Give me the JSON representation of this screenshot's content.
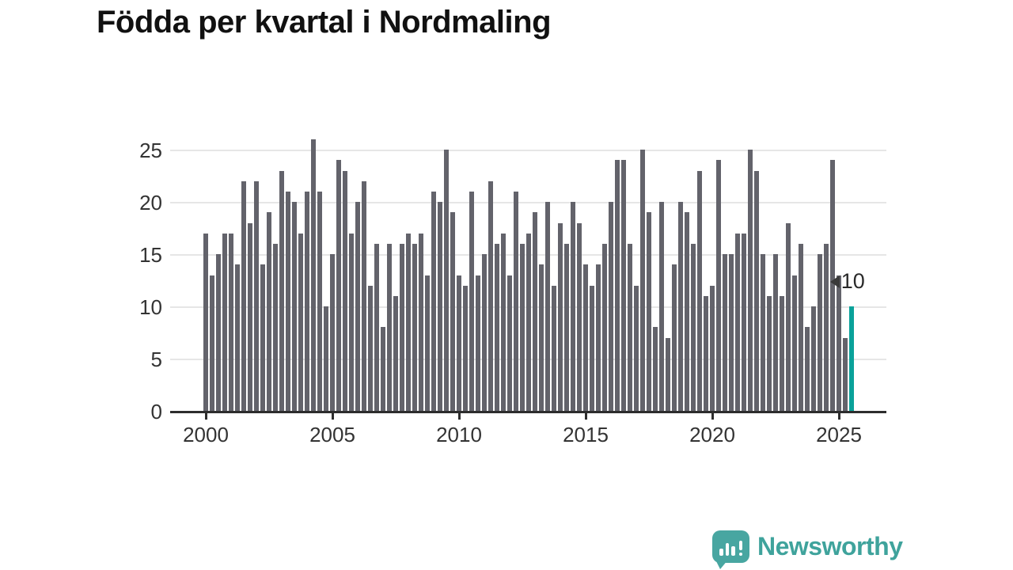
{
  "title": "Födda per kvartal i Nordmaling",
  "chart_data": {
    "type": "bar",
    "x_start": {
      "year": 2000,
      "quarter": 1
    },
    "x_end": {
      "year": 2025,
      "quarter": 3
    },
    "values": [
      17,
      13,
      15,
      17,
      17,
      14,
      22,
      18,
      22,
      14,
      19,
      16,
      23,
      21,
      20,
      17,
      21,
      26,
      21,
      10,
      15,
      24,
      23,
      17,
      20,
      22,
      12,
      16,
      8,
      16,
      11,
      16,
      17,
      16,
      17,
      13,
      21,
      20,
      25,
      19,
      13,
      12,
      21,
      13,
      15,
      22,
      16,
      17,
      13,
      21,
      16,
      17,
      19,
      14,
      20,
      12,
      18,
      16,
      20,
      18,
      14,
      12,
      14,
      16,
      20,
      24,
      24,
      16,
      12,
      25,
      19,
      8,
      20,
      7,
      14,
      20,
      19,
      16,
      23,
      11,
      12,
      24,
      15,
      15,
      17,
      17,
      25,
      23,
      15,
      11,
      15,
      11,
      18,
      13,
      16,
      8,
      10,
      15,
      16,
      24,
      13,
      7,
      10
    ],
    "highlight_index": 102,
    "annotation": {
      "text": "10"
    },
    "x_tick_labels": [
      "2000",
      "2005",
      "2010",
      "2015",
      "2020",
      "2025"
    ],
    "y_tick_labels": [
      "0",
      "5",
      "10",
      "15",
      "20",
      "25"
    ],
    "y_ticks": [
      0,
      5,
      10,
      15,
      20,
      25
    ],
    "ylim": [
      0,
      26.5
    ],
    "grid": true,
    "legend": "none",
    "bar_color": "#63636b",
    "highlight_color": "#0aa29a",
    "grid_color": "#e6e6e6",
    "axis_color": "#2d2d2d",
    "tick_label_color": "#333333"
  },
  "branding": {
    "logo_text": "Newsworthy",
    "logo_color": "#3fa39c"
  }
}
